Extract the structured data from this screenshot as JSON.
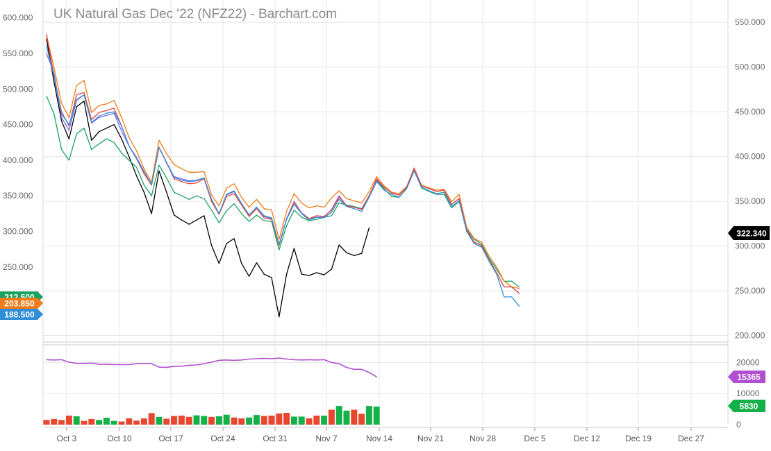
{
  "chart_data": {
    "type": "line",
    "title": "UK Natural Gas Dec '22 (NFZ22) - Barchart.com",
    "x_tick_labels": [
      "Oct 3",
      "Oct 10",
      "Oct 17",
      "Oct 24",
      "Oct 31",
      "Nov 7",
      "Nov 14",
      "Nov 21",
      "Nov 28",
      "Dec 5",
      "Dec 12",
      "Dec 19",
      "Dec 27"
    ],
    "price_panel": {
      "left_axis": {
        "ticks": [
          "600.000",
          "550.000",
          "500.000",
          "450.000",
          "400.000",
          "350.000",
          "300.000",
          "250.000"
        ],
        "range": [
          147.5,
          625
        ]
      },
      "right_axis": {
        "ticks": [
          "550.000",
          "500.000",
          "450.000",
          "400.000",
          "350.000",
          "300.000",
          "250.000",
          "200.000"
        ],
        "range": [
          195,
          575
        ]
      },
      "series": [
        {
          "color": "#000000",
          "axis": "left",
          "values": [
            570,
            510,
            455,
            430,
            475,
            483,
            428,
            440,
            445,
            450,
            430,
            405,
            378,
            355,
            325,
            385,
            355,
            323,
            316,
            310,
            316,
            322,
            280,
            255,
            283,
            290,
            255,
            237,
            256,
            240,
            235,
            180,
            240,
            276,
            240,
            238,
            242,
            239,
            247,
            281,
            270,
            266,
            269,
            305
          ]
        },
        {
          "color": "#1aa260",
          "axis": "left",
          "values": [
            490,
            465,
            415,
            400,
            437,
            445,
            415,
            423,
            430,
            425,
            410,
            400,
            390,
            365,
            350,
            393,
            375,
            355,
            350,
            345,
            350,
            346,
            330,
            312,
            329,
            339,
            325,
            314,
            323,
            315,
            314,
            274,
            308,
            330,
            320,
            315,
            317,
            320,
            322,
            340,
            337,
            335,
            332,
            350,
            371,
            360,
            349,
            348,
            360,
            386,
            361,
            356,
            352,
            352,
            333,
            342,
            303,
            289,
            282,
            262,
            247,
            230,
            230,
            222
          ]
        },
        {
          "color": "#ef7b1a",
          "axis": "left",
          "values": [
            575,
            530,
            480,
            460,
            505,
            512,
            467,
            477,
            479,
            484,
            460,
            432,
            413,
            388,
            369,
            428,
            409,
            394,
            388,
            383,
            383,
            384,
            351,
            336,
            361,
            367,
            348,
            334,
            345,
            332,
            330,
            289,
            328,
            353,
            340,
            333,
            336,
            334,
            347,
            357,
            346,
            343,
            340,
            356,
            377,
            364,
            355,
            353,
            363,
            387,
            365,
            361,
            358,
            359,
            342,
            352,
            306,
            290,
            285,
            265,
            250,
            230,
            222,
            220
          ]
        },
        {
          "color": "#7b68ee",
          "axis": "left",
          "values": [
            550,
            522,
            460,
            442,
            484,
            492,
            452,
            460,
            463,
            466,
            441,
            420,
            404,
            384,
            365,
            418,
            397,
            377,
            374,
            371,
            372,
            375,
            344,
            324,
            351,
            356,
            339,
            323,
            334,
            321,
            318,
            281,
            318,
            342,
            326,
            318,
            320,
            320,
            331,
            350,
            336,
            334,
            331,
            350,
            372,
            362,
            354,
            351,
            362,
            389,
            364,
            360,
            356,
            358,
            338,
            346,
            302,
            285,
            280,
            260,
            242,
            222,
            222,
            213
          ]
        },
        {
          "color": "#e8473b",
          "axis": "left",
          "values": [
            577,
            518,
            468,
            448,
            492,
            495,
            457,
            467,
            470,
            473,
            448,
            420,
            402,
            381,
            365,
            418,
            397,
            374,
            370,
            367,
            368,
            374,
            342,
            324,
            349,
            353,
            337,
            321,
            332,
            319,
            317,
            280,
            317,
            341,
            325,
            318,
            322,
            321,
            330,
            348,
            336,
            334,
            331,
            350,
            374,
            362,
            354,
            351,
            362,
            389,
            364,
            360,
            356,
            358,
            338,
            346,
            302,
            285,
            280,
            260,
            242,
            222,
            222,
            213
          ]
        },
        {
          "color": "#2e8ed8",
          "axis": "left",
          "values": [
            560,
            518,
            465,
            450,
            485,
            492,
            453,
            462,
            466,
            468,
            448,
            420,
            402,
            384,
            366,
            418,
            396,
            376,
            372,
            370,
            371,
            375,
            345,
            325,
            352,
            357,
            339,
            323,
            334,
            322,
            319,
            282,
            317,
            338,
            325,
            316,
            320,
            319,
            327,
            345,
            335,
            332,
            328,
            348,
            370,
            358,
            352,
            348,
            360,
            385,
            362,
            357,
            353,
            355,
            335,
            343,
            300,
            283,
            278,
            258,
            240,
            208,
            208,
            195
          ]
        }
      ],
      "price_labels": [
        {
          "value": "322.340",
          "color": "#000000"
        },
        {
          "value": "212.500",
          "color": "#1aa260"
        },
        {
          "value": "203.850",
          "color": "#ef7b1a"
        },
        {
          "value": "188.500",
          "color": "#2e8ed8"
        }
      ]
    },
    "volume_panel": {
      "right_axis": {
        "ticks": [
          "20000",
          "10000",
          "0"
        ],
        "range": [
          0,
          25000
        ]
      },
      "open_interest": {
        "color": "#b04fd0",
        "values": [
          20900,
          20800,
          20900,
          20100,
          19700,
          19700,
          19800,
          19400,
          19400,
          19300,
          19300,
          19300,
          19600,
          19600,
          19600,
          18500,
          18400,
          18800,
          18800,
          19100,
          19200,
          19600,
          20100,
          20700,
          20800,
          20700,
          20800,
          21100,
          21200,
          21300,
          21200,
          21400,
          21100,
          20900,
          20800,
          20900,
          20800,
          20900,
          20000,
          19600,
          18400,
          17800,
          17800,
          16800,
          15365
        ]
      },
      "volume": {
        "up_color": "#16b04a",
        "down_color": "#e8472f",
        "values": [
          1500,
          1800,
          1500,
          2900,
          2700,
          1200,
          1800,
          1500,
          2200,
          1200,
          1000,
          2000,
          1300,
          2000,
          3700,
          2500,
          1900,
          2800,
          2900,
          2500,
          3000,
          2800,
          2500,
          2700,
          3200,
          2300,
          2000,
          2300,
          3100,
          2800,
          2900,
          3600,
          3800,
          2600,
          2600,
          2000,
          2900,
          2900,
          4800,
          6000,
          4500,
          4800,
          3500,
          6000,
          5830
        ],
        "up": [
          false,
          false,
          false,
          false,
          true,
          false,
          false,
          true,
          true,
          true,
          false,
          false,
          false,
          false,
          false,
          true,
          false,
          false,
          false,
          false,
          true,
          true,
          false,
          true,
          true,
          false,
          false,
          true,
          true,
          false,
          false,
          false,
          false,
          true,
          true,
          false,
          false,
          true,
          false,
          true,
          true,
          false,
          false,
          true,
          true
        ]
      },
      "labels": [
        {
          "value": "15365",
          "color": "#b04fd0"
        },
        {
          "value": "5830",
          "color": "#16b04a"
        }
      ]
    }
  }
}
